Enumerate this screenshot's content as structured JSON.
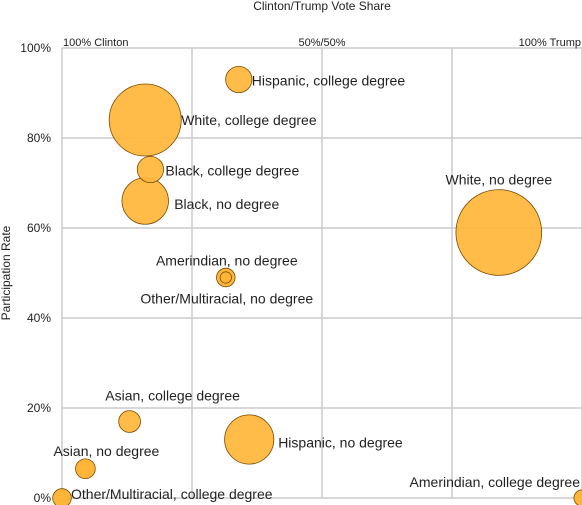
{
  "chart_data": {
    "type": "scatter",
    "title": "Clinton/Trump Vote Share",
    "ylabel": "Participation Rate",
    "ylim": [
      0,
      100
    ],
    "yticks": [
      "0%",
      "20%",
      "40%",
      "60%",
      "80%",
      "100%"
    ],
    "xlim": [
      0,
      100
    ],
    "top_labels": [
      "100% Clinton",
      "50%/50%",
      "100% Trump"
    ],
    "grid": true,
    "marker_color": "#ffb638",
    "points": [
      {
        "label": "Hispanic, college degree",
        "x": 34,
        "y": 93,
        "size": 1.6
      },
      {
        "label": "White, college degree",
        "x": 16,
        "y": 84,
        "size": 12
      },
      {
        "label": "Black, college degree",
        "x": 17,
        "y": 73,
        "size": 1.6
      },
      {
        "label": "Black, no degree",
        "x": 16,
        "y": 66,
        "size": 5
      },
      {
        "label": "White, no degree",
        "x": 84,
        "y": 59,
        "size": 17
      },
      {
        "label": "Amerindian, no degree",
        "x": 31.5,
        "y": 49,
        "size": 0.8
      },
      {
        "label": "Other/Multiracial, no degree",
        "x": 31.5,
        "y": 49,
        "size": 0.3
      },
      {
        "label": "Asian, college degree",
        "x": 13,
        "y": 17,
        "size": 1.1
      },
      {
        "label": "Hispanic, no degree",
        "x": 36,
        "y": 13,
        "size": 5.6
      },
      {
        "label": "Asian, no degree",
        "x": 4.5,
        "y": 6.5,
        "size": 0.9
      },
      {
        "label": "Other/Multiracial, college degree",
        "x": 0,
        "y": 0,
        "size": 0.8
      },
      {
        "label": "Amerindian, college degree",
        "x": 100,
        "y": 0,
        "size": 0.6
      }
    ]
  }
}
